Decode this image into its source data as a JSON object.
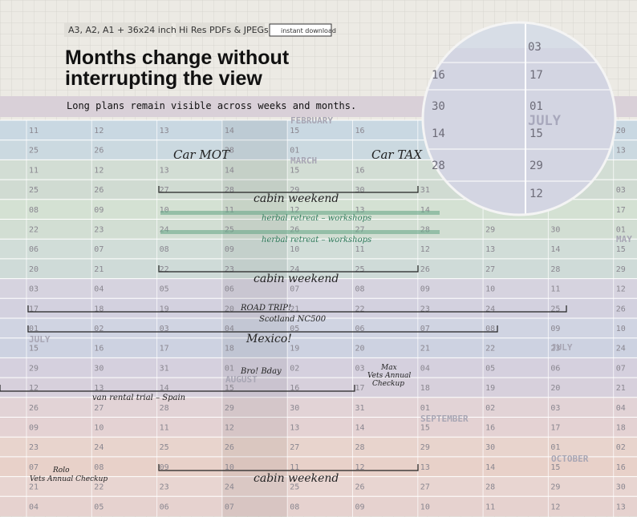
{
  "header": {
    "badges": [
      "A3, A2, A1 + 36x24 inches",
      "Hi Res PDFs & JPEGs",
      "instant download"
    ],
    "title_lines": [
      "Months change without",
      "interrupting the view"
    ],
    "subtitle": "Long plans remain visible across weeks and months."
  },
  "calendar": {
    "rows": [
      [
        "11",
        "12",
        "13",
        "14",
        "15",
        "16",
        null,
        null,
        null,
        "20"
      ],
      [
        "25",
        "26",
        null,
        "28",
        "01",
        null,
        null,
        null,
        null,
        "13"
      ],
      [
        "11",
        "12",
        "13",
        "14",
        "15",
        "16",
        null,
        null,
        null,
        null
      ],
      [
        "25",
        "26",
        "27",
        "28",
        "29",
        "30",
        "31",
        null,
        null,
        "03"
      ],
      [
        "08",
        "09",
        "10",
        "11",
        "12",
        "13",
        "14",
        null,
        null,
        "17"
      ],
      [
        "22",
        "23",
        "24",
        "25",
        "26",
        "27",
        "28",
        "29",
        "30",
        "01"
      ],
      [
        "06",
        "07",
        "08",
        "09",
        "10",
        "11",
        "12",
        "13",
        "14",
        "15"
      ],
      [
        "20",
        "21",
        "22",
        "23",
        "24",
        "25",
        "26",
        "27",
        "28",
        "29"
      ],
      [
        "03",
        "04",
        "05",
        "06",
        "07",
        "08",
        "09",
        "10",
        "11",
        "12"
      ],
      [
        "17",
        "18",
        "19",
        "20",
        "21",
        "22",
        "23",
        "24",
        "25",
        "26"
      ],
      [
        "01",
        "02",
        "03",
        "04",
        "05",
        "06",
        "07",
        "08",
        "09",
        "10"
      ],
      [
        "15",
        "16",
        "17",
        "18",
        "19",
        "20",
        "21",
        "22",
        "23",
        "24"
      ],
      [
        "29",
        "30",
        "31",
        "01",
        "02",
        "03",
        "04",
        "05",
        "06",
        "07"
      ],
      [
        "12",
        "13",
        "14",
        "15",
        "16",
        "17",
        "18",
        "19",
        "20",
        "21"
      ],
      [
        "26",
        "27",
        "28",
        "29",
        "30",
        "31",
        "01",
        "02",
        "03",
        "04"
      ],
      [
        "09",
        "10",
        "11",
        "12",
        "13",
        "14",
        "15",
        "16",
        "17",
        "18"
      ],
      [
        "23",
        "24",
        "25",
        "26",
        "27",
        "28",
        "29",
        "30",
        "01",
        "02"
      ],
      [
        "07",
        "08",
        "09",
        "10",
        "11",
        "12",
        "13",
        "14",
        "15",
        "16"
      ],
      [
        "21",
        "22",
        "23",
        "24",
        "25",
        "26",
        "27",
        "28",
        "29",
        "30"
      ],
      [
        "04",
        "05",
        "06",
        "07",
        "08",
        "09",
        "10",
        "11",
        "12",
        "13"
      ]
    ],
    "months": [
      "FEBRUARY",
      "MARCH",
      "MAY",
      "JULY",
      "JULY",
      "AUGUST",
      "SEPTEMBER",
      "OCTOBER"
    ],
    "events": [
      "Car MOT",
      "Car TAX",
      "cabin weekend",
      "herbal retreat – workshops",
      "herbal retreat – workshops",
      "cabin weekend",
      "ROAD TRIP!",
      "Scotland NC500",
      "Mexico!",
      "Bro! Bday",
      "Max",
      "Vets Annual",
      "Checkup",
      "van rental trial – Spain",
      "Rolo",
      "Vets Annual Checkup",
      "cabin weekend"
    ]
  },
  "magnifier": {
    "labels": [
      "03",
      "16",
      "17",
      "30",
      "01",
      "JULY",
      "14",
      "15",
      "28",
      "29",
      "12"
    ]
  }
}
